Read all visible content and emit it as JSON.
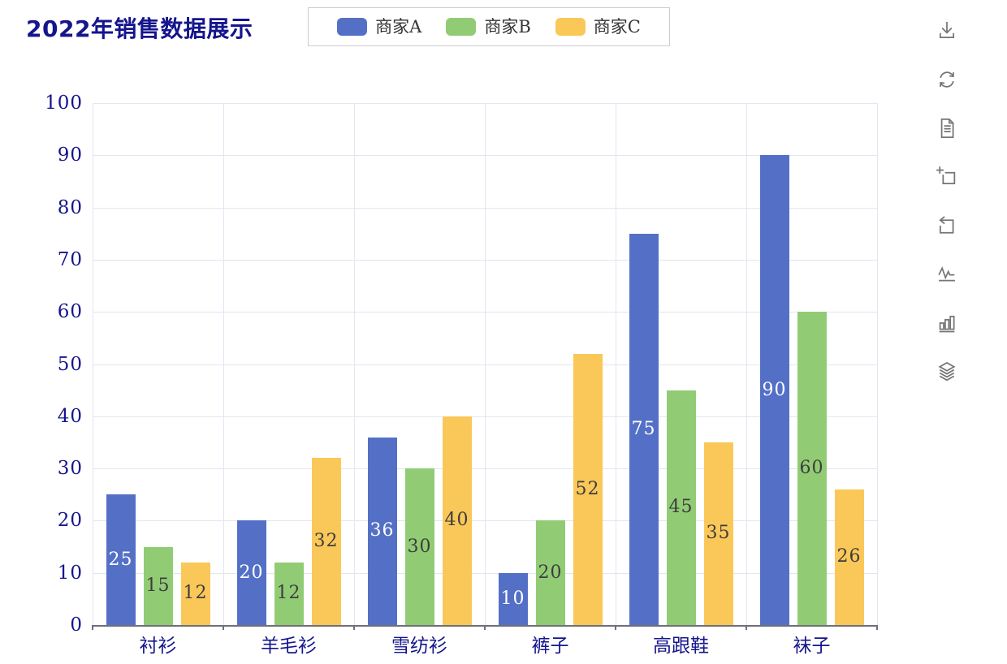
{
  "title": {
    "text": "2022年销售数据展示"
  },
  "legend": {
    "items": [
      {
        "label": "商家A",
        "color": "#5470c6"
      },
      {
        "label": "商家B",
        "color": "#91cc75"
      },
      {
        "label": "商家C",
        "color": "#fac858"
      }
    ]
  },
  "toolbox": {
    "tools": [
      {
        "name": "save-as-image"
      },
      {
        "name": "restore"
      },
      {
        "name": "data-view"
      },
      {
        "name": "zoom-select"
      },
      {
        "name": "zoom-reset"
      },
      {
        "name": "magic-type-line"
      },
      {
        "name": "magic-type-bar"
      },
      {
        "name": "magic-type-stack"
      }
    ]
  },
  "chart_data": {
    "type": "bar",
    "categories": [
      "衬衫",
      "羊毛衫",
      "雪纺衫",
      "裤子",
      "高跟鞋",
      "袜子"
    ],
    "series": [
      {
        "name": "商家A",
        "color": "#5470c6",
        "label_color": "#ffffff",
        "values": [
          25,
          20,
          36,
          10,
          75,
          90
        ]
      },
      {
        "name": "商家B",
        "color": "#91cc75",
        "label_color": "#3d3d3d",
        "values": [
          15,
          12,
          30,
          20,
          45,
          60
        ]
      },
      {
        "name": "商家C",
        "color": "#fac858",
        "label_color": "#3d3d3d",
        "values": [
          12,
          32,
          40,
          52,
          35,
          26
        ]
      }
    ],
    "ylim": [
      0,
      100
    ],
    "y_ticks": [
      0,
      10,
      20,
      30,
      40,
      50,
      60,
      70,
      80,
      90,
      100
    ],
    "grid": "horizontal-and-vertical",
    "legend_position": "top-center",
    "value_labels": "inside-center",
    "title": "2022年销售数据展示",
    "xlabel": "",
    "ylabel": ""
  },
  "colors": {
    "title": "#15158d",
    "axis_label": "#15158d",
    "grid_line": "#e2e6f1",
    "axis_line": "#6e7079",
    "legend_border": "#cccccc",
    "legend_text": "#333333",
    "toolbox_icon": "#757575",
    "background": "#ffffff"
  }
}
